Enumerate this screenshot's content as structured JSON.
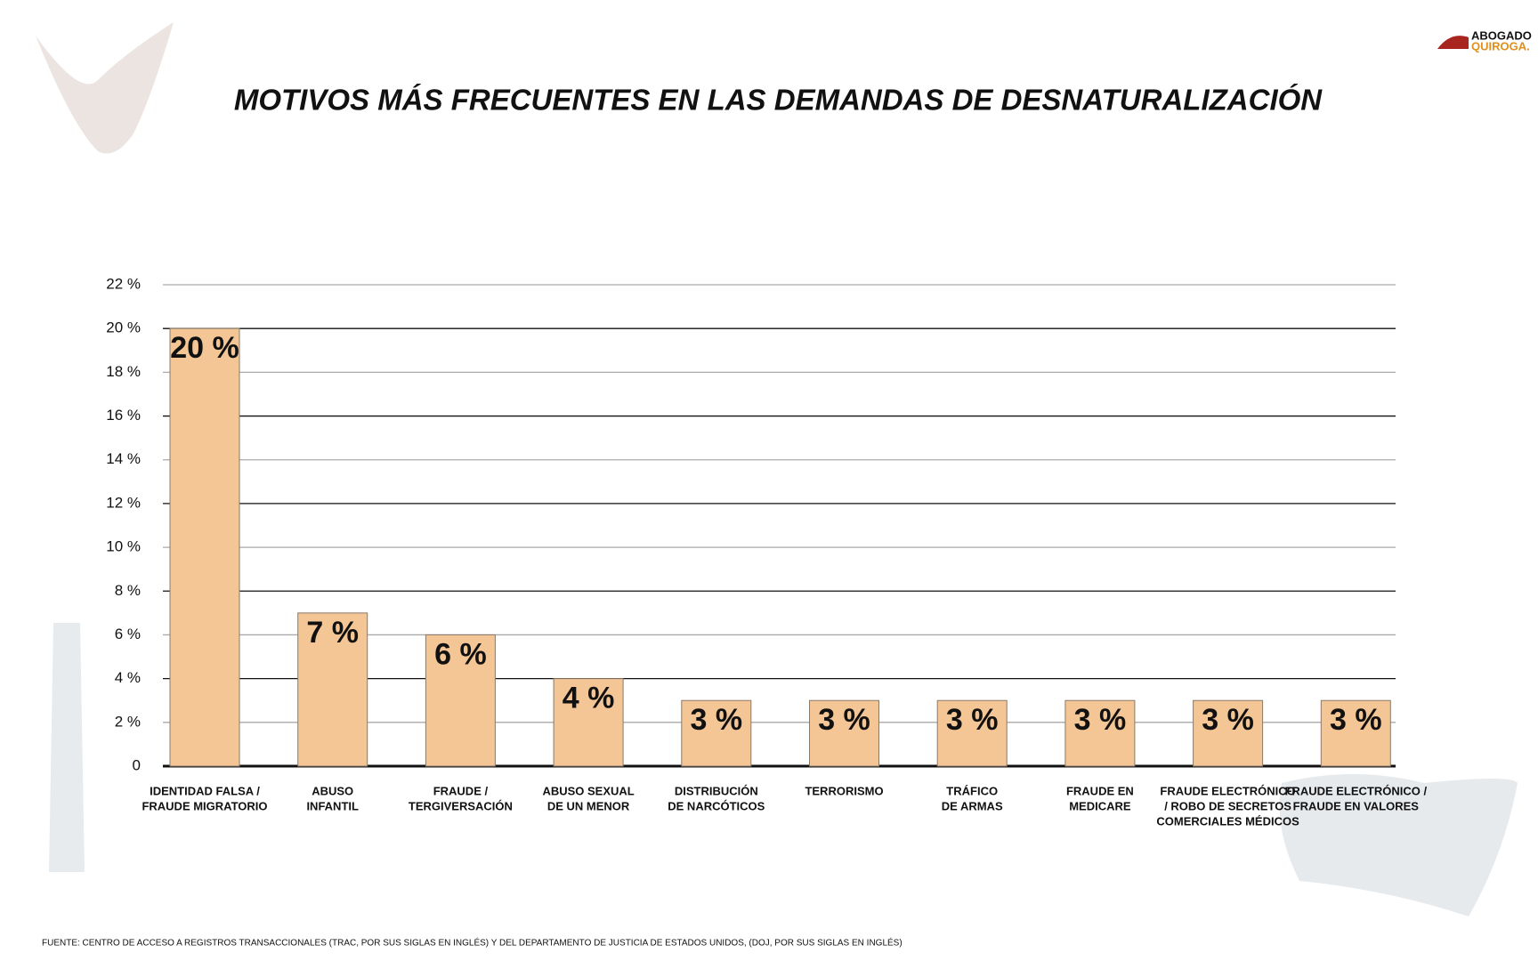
{
  "logo": [
    "ABOGADO",
    "QUIROGA."
  ],
  "source": "FUENTE: CENTRO DE ACCESO A REGISTROS TRANSACCIONALES (TRAC, POR SUS SIGLAS EN INGLÉS) Y DEL DEPARTAMENTO DE JUSTICIA DE ESTADOS UNIDOS, (DOJ, POR SUS SIGLAS EN INGLÉS)",
  "chart_data": {
    "type": "bar",
    "title": "MOTIVOS MÁS FRECUENTES EN LAS DEMANDAS DE DESNATURALIZACIÓN",
    "categories": [
      [
        "IDENTIDAD FALSA /",
        "FRAUDE MIGRATORIO"
      ],
      [
        "ABUSO",
        "INFANTIL"
      ],
      [
        "FRAUDE /",
        "TERGIVERSACIÓN"
      ],
      [
        "ABUSO SEXUAL",
        "DE UN MENOR"
      ],
      [
        "DISTRIBUCIÓN",
        "DE NARCÓTICOS"
      ],
      [
        "TERRORISMO"
      ],
      [
        "TRÁFICO",
        "DE ARMAS"
      ],
      [
        "FRAUDE EN",
        "MEDICARE"
      ],
      [
        "FRAUDE ELECTRÓNICO",
        "/ ROBO DE SECRETOS",
        "COMERCIALES MÉDICOS"
      ],
      [
        "FRAUDE ELECTRÓNICO /",
        "FRAUDE EN VALORES"
      ]
    ],
    "values": [
      20,
      7,
      6,
      4,
      3,
      3,
      3,
      3,
      3,
      3
    ],
    "value_labels": [
      "20 %",
      "7 %",
      "6 %",
      "4 %",
      "3 %",
      "3 %",
      "3 %",
      "3 %",
      "3 %",
      "3 %"
    ],
    "color": "#f4c595",
    "ylim": [
      0,
      22
    ],
    "yticks": [
      0,
      {
        "value": 2,
        "label": "2 %"
      },
      {
        "value": 4,
        "label": "4 %"
      },
      {
        "value": 6,
        "label": "6 %"
      },
      {
        "value": 8,
        "label": "8 %"
      },
      {
        "value": 10,
        "label": "10 %"
      },
      {
        "value": 12,
        "label": "12 %"
      },
      {
        "value": 14,
        "label": "14 %"
      },
      {
        "value": 16,
        "label": "16 %"
      },
      {
        "value": 18,
        "label": "18 %"
      },
      {
        "value": 20,
        "label": "20 %"
      },
      {
        "value": 22,
        "label": "22 %"
      }
    ],
    "grid": true
  }
}
